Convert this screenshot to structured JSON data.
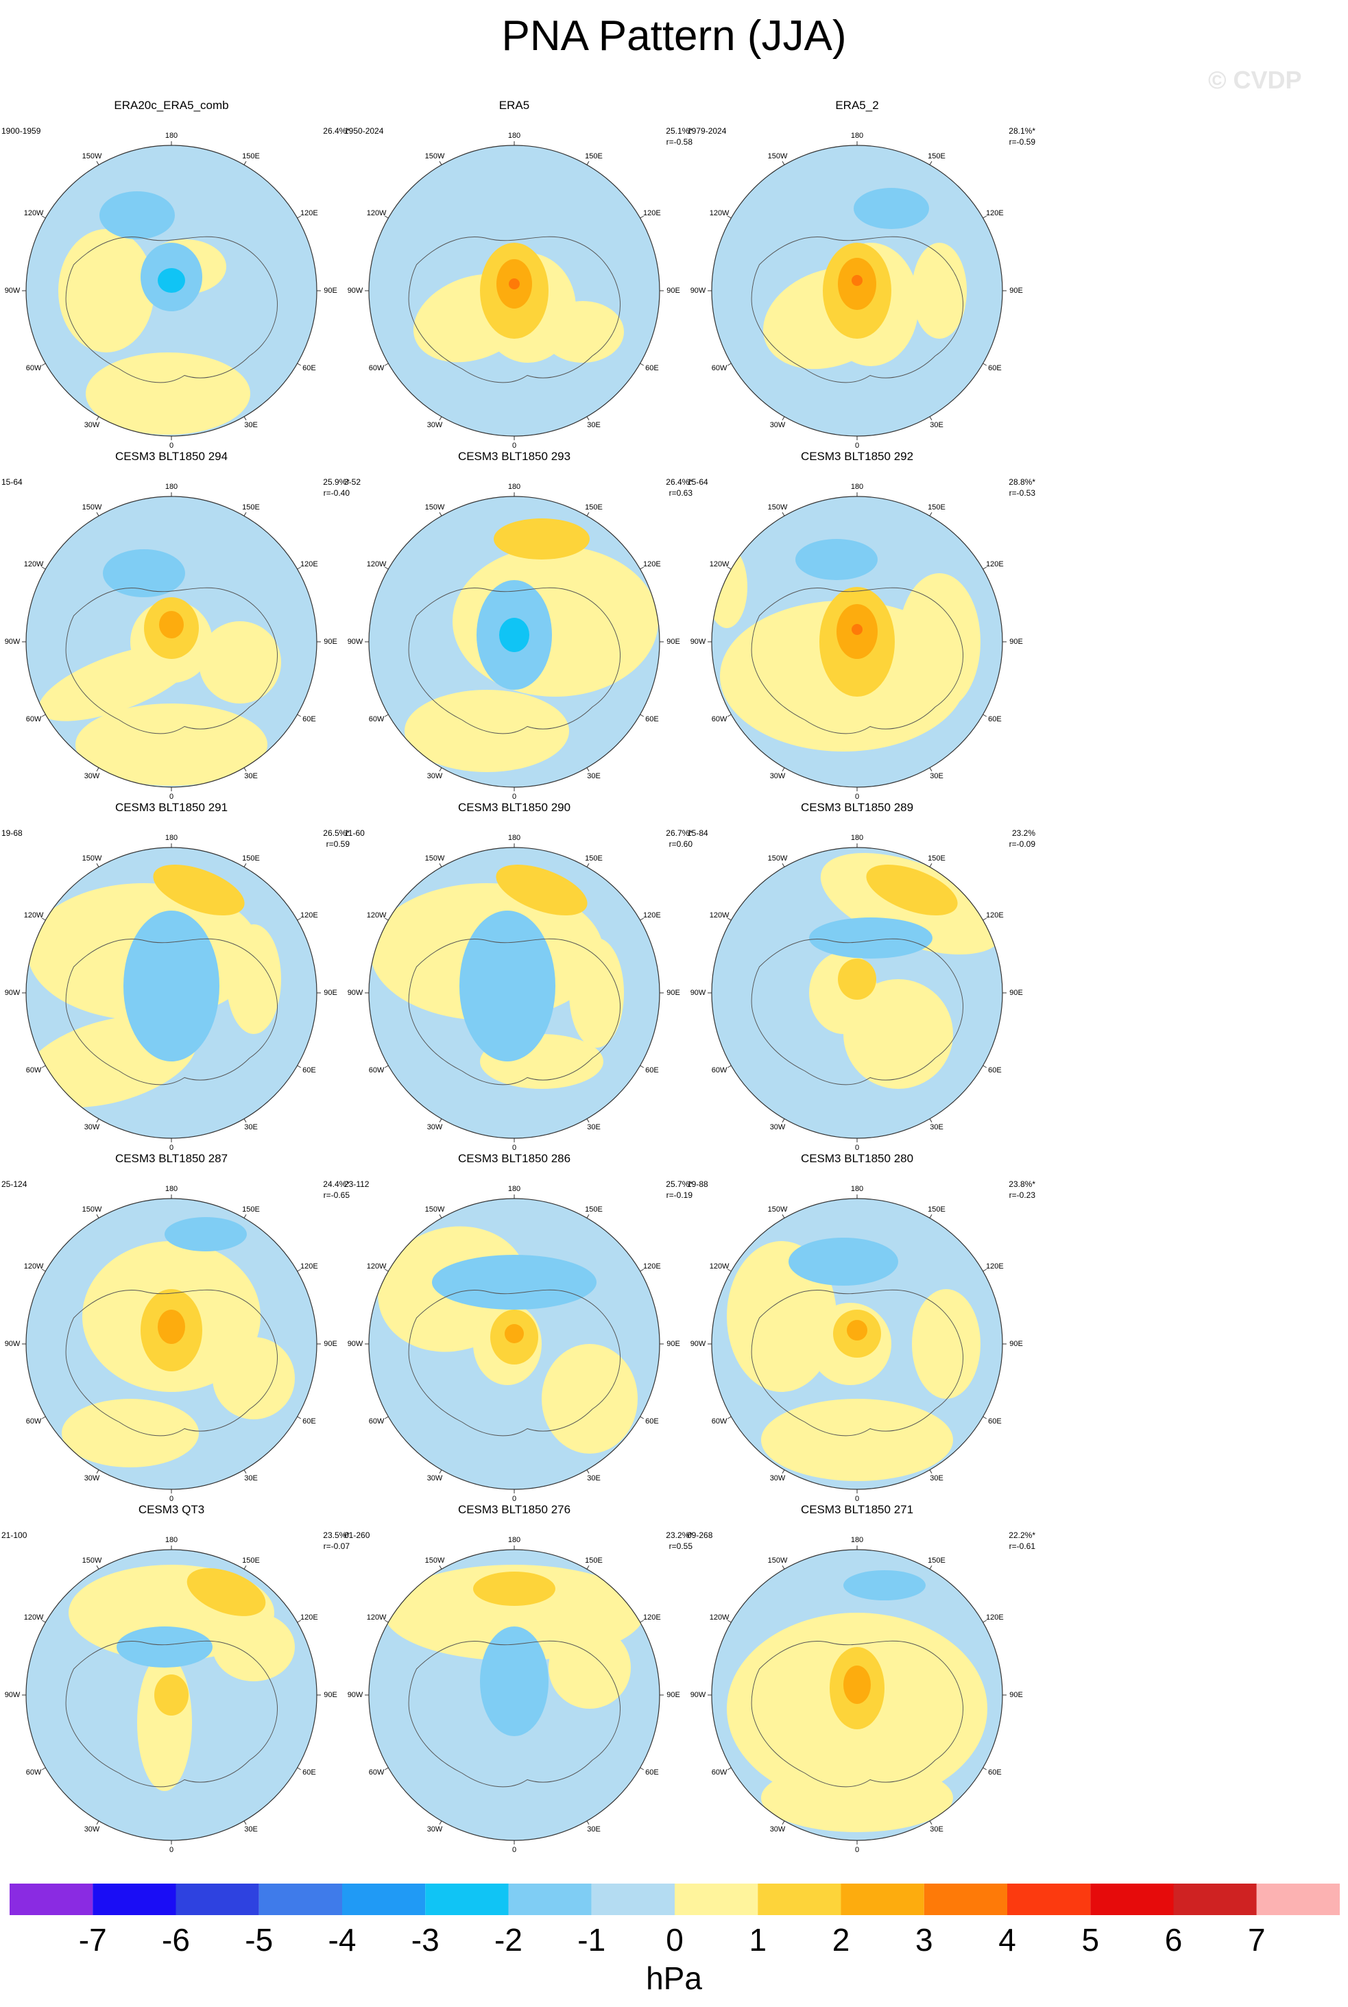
{
  "title": "PNA Pattern (JJA)",
  "watermark": "© CVDP",
  "lon_labels": [
    "180",
    "150E",
    "120E",
    "90E",
    "60E",
    "30E",
    "0",
    "30W",
    "60W",
    "90W",
    "120W",
    "150W"
  ],
  "panels": [
    {
      "title": "ERA20c_ERA5_comb",
      "period": "1900-1959",
      "pct": "26.4%*",
      "r": ""
    },
    {
      "title": "ERA5",
      "period": "1950-2024",
      "pct": "25.1%*",
      "r": "r=-0.58"
    },
    {
      "title": "ERA5_2",
      "period": "1979-2024",
      "pct": "28.1%*",
      "r": "r=-0.59"
    },
    {
      "title": "CESM3 BLT1850 294",
      "period": "15-64",
      "pct": "25.9%*",
      "r": "r=-0.40"
    },
    {
      "title": "CESM3 BLT1850 293",
      "period": "3-52",
      "pct": "26.4%*",
      "r": "r=0.63"
    },
    {
      "title": "CESM3 BLT1850 292",
      "period": "15-64",
      "pct": "28.8%*",
      "r": "r=-0.53"
    },
    {
      "title": "CESM3 BLT1850 291",
      "period": "19-68",
      "pct": "26.5%*",
      "r": "r=0.59"
    },
    {
      "title": "CESM3 BLT1850 290",
      "period": "11-60",
      "pct": "26.7%*",
      "r": "r=0.60"
    },
    {
      "title": "CESM3 BLT1850 289",
      "period": "15-84",
      "pct": "23.2%",
      "r": "r=-0.09"
    },
    {
      "title": "CESM3 BLT1850 287",
      "period": "25-124",
      "pct": "24.4%*",
      "r": "r=-0.65"
    },
    {
      "title": "CESM3 BLT1850 286",
      "period": "23-112",
      "pct": "25.7%*",
      "r": "r=-0.19"
    },
    {
      "title": "CESM3 BLT1850 280",
      "period": "19-88",
      "pct": "23.8%*",
      "r": "r=-0.23"
    },
    {
      "title": "CESM3 QT3",
      "period": "21-100",
      "pct": "23.5%*",
      "r": "r=-0.07"
    },
    {
      "title": "CESM3 BLT1850 276",
      "period": "61-260",
      "pct": "23.2%*",
      "r": "r=0.55"
    },
    {
      "title": "CESM3 BLT1850 271",
      "period": "69-268",
      "pct": "22.2%*",
      "r": "r=-0.61"
    }
  ],
  "chart_data": {
    "type": "heatmap",
    "title": "PNA Pattern (JJA)",
    "units": "hPa",
    "colorbar": {
      "labels": [
        "-7",
        "-6",
        "-5",
        "-4",
        "-3",
        "-2",
        "-1",
        "0",
        "1",
        "2",
        "3",
        "4",
        "5",
        "6",
        "7"
      ],
      "levels": [
        -7,
        -6,
        -5,
        -4,
        -3,
        -2,
        -1,
        0,
        1,
        2,
        3,
        4,
        5,
        6,
        7
      ],
      "colors": [
        "#8a2be2",
        "#1a0df5",
        "#2e42e0",
        "#3f7bea",
        "#209af5",
        "#10c4f5",
        "#7fcdf4",
        "#b4dcf2",
        "#fff49c",
        "#fdd43a",
        "#fdac0e",
        "#fe7a08",
        "#fc3a0f",
        "#e60b0b",
        "#cf2222",
        "#fcb2b2"
      ]
    },
    "projection": "north polar stereographic",
    "panels": [
      {
        "name": "ERA20c_ERA5_comb",
        "period": "1900-1959",
        "pct_variance": 26.4,
        "r": null
      },
      {
        "name": "ERA5",
        "period": "1950-2024",
        "pct_variance": 25.1,
        "r": -0.58
      },
      {
        "name": "ERA5_2",
        "period": "1979-2024",
        "pct_variance": 28.1,
        "r": -0.59
      },
      {
        "name": "CESM3 BLT1850 294",
        "period": "15-64",
        "pct_variance": 25.9,
        "r": -0.4
      },
      {
        "name": "CESM3 BLT1850 293",
        "period": "3-52",
        "pct_variance": 26.4,
        "r": 0.63
      },
      {
        "name": "CESM3 BLT1850 292",
        "period": "15-64",
        "pct_variance": 28.8,
        "r": -0.53
      },
      {
        "name": "CESM3 BLT1850 291",
        "period": "19-68",
        "pct_variance": 26.5,
        "r": 0.59
      },
      {
        "name": "CESM3 BLT1850 290",
        "period": "11-60",
        "pct_variance": 26.7,
        "r": 0.6
      },
      {
        "name": "CESM3 BLT1850 289",
        "period": "15-84",
        "pct_variance": 23.2,
        "r": -0.09
      },
      {
        "name": "CESM3 BLT1850 287",
        "period": "25-124",
        "pct_variance": 24.4,
        "r": -0.65
      },
      {
        "name": "CESM3 BLT1850 286",
        "period": "23-112",
        "pct_variance": 25.7,
        "r": -0.19
      },
      {
        "name": "CESM3 BLT1850 280",
        "period": "19-88",
        "pct_variance": 23.8,
        "r": -0.23
      },
      {
        "name": "CESM3 QT3",
        "period": "21-100",
        "pct_variance": 23.5,
        "r": -0.07
      },
      {
        "name": "CESM3 BLT1850 276",
        "period": "61-260",
        "pct_variance": 23.2,
        "r": 0.55
      },
      {
        "name": "CESM3 BLT1850 271",
        "period": "69-268",
        "pct_variance": 22.2,
        "r": -0.61
      }
    ]
  }
}
